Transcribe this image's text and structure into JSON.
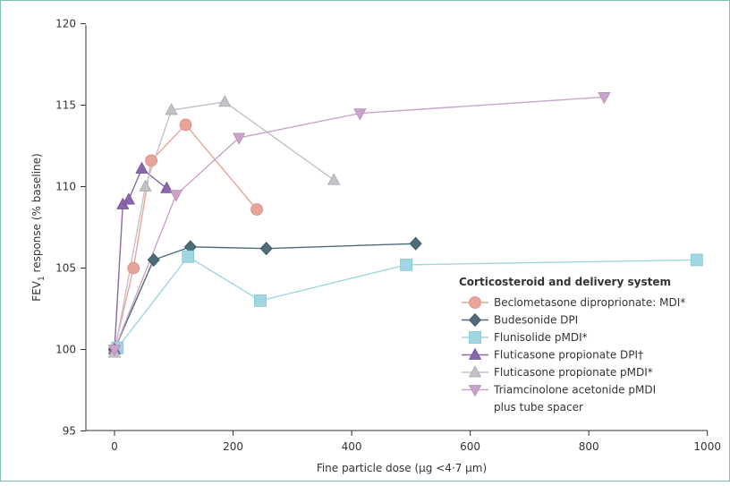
{
  "chart_data": {
    "type": "line",
    "title": "",
    "xlabel": "Fine particle dose (µg <4·7 µm)",
    "ylabel_main": "FEV",
    "ylabel_sub": "1",
    "ylabel_rest": " response (% baseline)",
    "xlim": [
      -50,
      1000
    ],
    "ylim": [
      95,
      120
    ],
    "xticks": [
      "0",
      "200",
      "400",
      "600",
      "800",
      "1000"
    ],
    "yticks": [
      "95",
      "100",
      "105",
      "110",
      "115",
      "120"
    ],
    "legend_title": "Corticosteroid and delivery system",
    "legend_position": "right",
    "series": [
      {
        "name": "Beclometasone diproprionate: MDI*",
        "name_line2": "",
        "color": "#e8a49a",
        "edge": "#d88e84",
        "marker": "circle",
        "points": [
          [
            0,
            100
          ],
          [
            32,
            105
          ],
          [
            62,
            111.6
          ],
          [
            120,
            113.8
          ],
          [
            240,
            108.6
          ]
        ]
      },
      {
        "name": "Budesonide DPI",
        "name_line2": "",
        "color": "#4d6b78",
        "edge": "#3b5663",
        "marker": "diamond",
        "points": [
          [
            0,
            100
          ],
          [
            66,
            105.5
          ],
          [
            128,
            106.3
          ],
          [
            256,
            106.2
          ],
          [
            508,
            106.5
          ]
        ]
      },
      {
        "name": "Flunisolide pMDI*",
        "name_line2": "",
        "color": "#9fd6e2",
        "edge": "#86c6d4",
        "marker": "square",
        "points": [
          [
            5,
            100.1
          ],
          [
            124,
            105.7
          ],
          [
            246,
            103
          ],
          [
            492,
            105.2
          ],
          [
            982,
            105.5
          ]
        ]
      },
      {
        "name": "Fluticasone propionate DPI†",
        "name_line2": "",
        "color": "#8a67ad",
        "edge": "#735596",
        "marker": "triangle-up",
        "points": [
          [
            0,
            100
          ],
          [
            14,
            108.9
          ],
          [
            24,
            109.2
          ],
          [
            46,
            111.1
          ],
          [
            88,
            109.9
          ]
        ]
      },
      {
        "name": "Fluticasone propionate pMDI*",
        "name_line2": "",
        "color": "#c2c2c8",
        "edge": "#a9a9b0",
        "marker": "triangle-up",
        "points": [
          [
            0,
            99.8
          ],
          [
            52,
            110
          ],
          [
            96,
            114.7
          ],
          [
            186,
            115.2
          ],
          [
            370,
            110.4
          ]
        ]
      },
      {
        "name": "Triamcinolone acetonide pMDI",
        "name_line2": "plus tube spacer",
        "color": "#c9a3c9",
        "edge": "#b58cb5",
        "marker": "triangle-down",
        "points": [
          [
            0,
            100
          ],
          [
            104,
            109.5
          ],
          [
            210,
            113
          ],
          [
            414,
            114.5
          ],
          [
            826,
            115.5
          ]
        ]
      }
    ]
  }
}
